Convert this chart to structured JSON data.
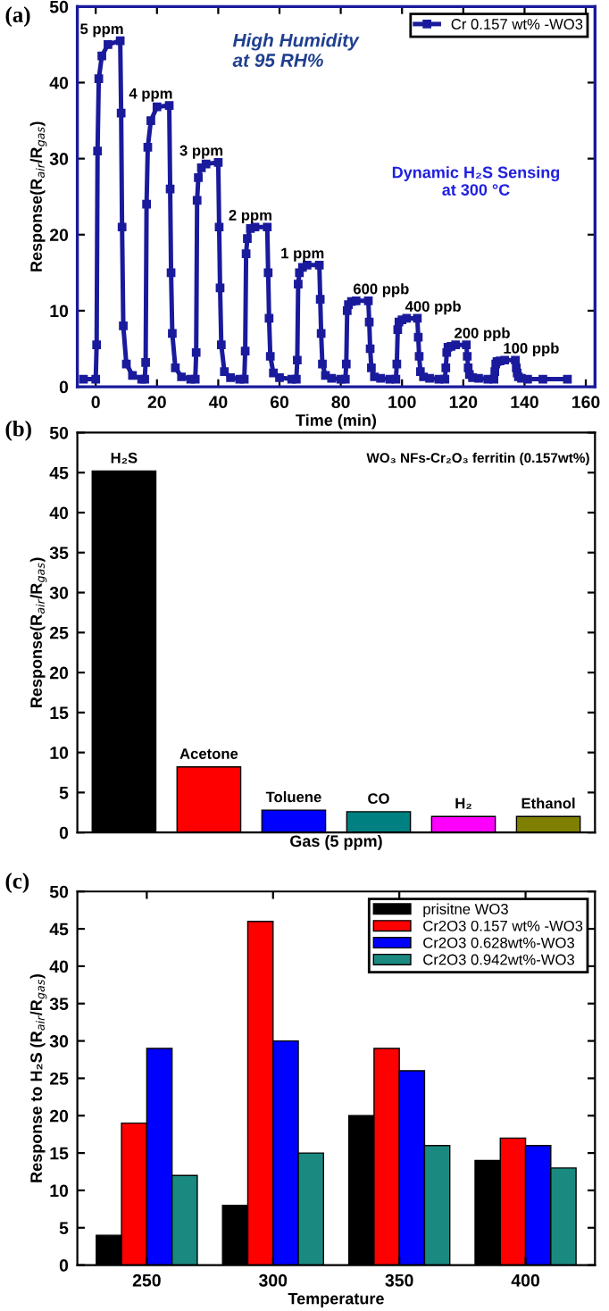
{
  "chart_data": [
    {
      "type": "line",
      "xlabel": "Time (min)",
      "ylabel": "Response(R$_{air}$/R$_{gas}$)",
      "xlim": [
        -6,
        163
      ],
      "ylim": [
        0,
        50
      ],
      "xticks": [
        0,
        20,
        40,
        60,
        80,
        100,
        120,
        140,
        160
      ],
      "yticks": [
        0,
        10,
        20,
        30,
        40,
        50
      ],
      "legend": "top right",
      "marker": "square",
      "line_style": "solid",
      "grid": false,
      "series": [
        {
          "name": "Cr 0.157 wt% -WO3",
          "color": "#1a1a9c",
          "x": [
            -4,
            0,
            0.3,
            0.6,
            1,
            2,
            4,
            8,
            8.3,
            8.6,
            9,
            10,
            12,
            15,
            16,
            16.3,
            16.6,
            17,
            18,
            20,
            24,
            24.3,
            24.6,
            25,
            26,
            28,
            31,
            32.5,
            32.8,
            33.1,
            33.5,
            34.5,
            36,
            40,
            40.3,
            40.6,
            41,
            42,
            44,
            47,
            48.5,
            48.8,
            49.1,
            49.5,
            50.5,
            52,
            56,
            56.3,
            56.6,
            57,
            58,
            60,
            64,
            65.5,
            65.8,
            66.1,
            66.5,
            67.5,
            69,
            73,
            73.3,
            73.6,
            74,
            75,
            77,
            80,
            81.5,
            81.8,
            82.1,
            82.5,
            83.5,
            85,
            89,
            89.3,
            89.6,
            90,
            91,
            93,
            96,
            98,
            98.3,
            98.6,
            99,
            100,
            101.5,
            105,
            105.3,
            105.6,
            106,
            107,
            109,
            112,
            114,
            114.3,
            114.6,
            115,
            116,
            117.5,
            121,
            121.3,
            121.6,
            122,
            123,
            125,
            128,
            130,
            130.3,
            130.6,
            131,
            132,
            133.5,
            137,
            137.3,
            137.6,
            138,
            139,
            141,
            146,
            154
          ],
          "values": [
            1,
            1,
            5.5,
            31,
            40.5,
            43.5,
            45,
            45.5,
            36,
            21,
            8,
            3,
            1.5,
            1,
            1,
            3.2,
            24,
            31.5,
            35,
            36.8,
            37,
            26,
            15,
            7,
            2.5,
            1.3,
            1,
            1,
            4.5,
            24.5,
            27.5,
            28.8,
            29.3,
            29.5,
            21,
            13,
            5.5,
            2,
            1.2,
            1,
            1,
            4.7,
            17.5,
            19.5,
            20.8,
            21,
            21,
            15,
            9,
            4,
            1.8,
            1.2,
            1,
            1,
            3.5,
            13.5,
            15,
            15.7,
            16,
            16,
            11.5,
            7,
            3,
            1.5,
            1.1,
            1,
            1,
            3,
            10,
            10.8,
            11.2,
            11.3,
            11.3,
            8.5,
            5,
            2.5,
            1.3,
            1.1,
            1,
            1,
            3,
            7.5,
            8.5,
            8.8,
            9,
            9,
            6.5,
            4,
            2,
            1.3,
            1.1,
            1,
            1,
            2.5,
            4.5,
            5.2,
            5.3,
            5.5,
            5.5,
            4,
            2.5,
            1.6,
            1.2,
            1.1,
            1,
            1,
            2,
            3,
            3.3,
            3.4,
            3.5,
            3.5,
            2.5,
            1.8,
            1.3,
            1.1,
            1,
            1,
            1
          ]
        }
      ],
      "annotations": [
        "(a)",
        "High Humidity\nat 95 RH%",
        "Dynamic H₂S Sensing\nat 300 °C",
        {
          "text": "5 ppm",
          "x": 2,
          "y": 45.5
        },
        {
          "text": "4 ppm",
          "x": 18,
          "y": 37
        },
        {
          "text": "3 ppm",
          "x": 34.5,
          "y": 29.5
        },
        {
          "text": "2 ppm",
          "x": 50.5,
          "y": 21
        },
        {
          "text": "1 ppm",
          "x": 67.5,
          "y": 16
        },
        {
          "text": "600 ppb",
          "x": 84,
          "y": 11.3
        },
        {
          "text": "400 ppb",
          "x": 101,
          "y": 9
        },
        {
          "text": "200 ppb",
          "x": 117,
          "y": 5.5
        },
        {
          "text": "100 ppb",
          "x": 133,
          "y": 3.5
        }
      ]
    },
    {
      "type": "bar",
      "xlabel": "Gas (5 ppm)",
      "ylabel": "Response(R$_{air}$/R$_{gas}$)",
      "ylim": [
        0,
        50
      ],
      "yticks": [
        0,
        5,
        10,
        15,
        20,
        25,
        30,
        35,
        40,
        45,
        50
      ],
      "tick_labels": "y",
      "grid": false,
      "categories": [
        "H₂S",
        "Acetone",
        "Toluene",
        "CO",
        "H₂",
        "Ethanol"
      ],
      "values": [
        45.2,
        8.2,
        2.8,
        2.6,
        2.0,
        2.0
      ],
      "colors": [
        "#000000",
        "#ff0000",
        "#0000ff",
        "#008080",
        "#ff00ff",
        "#808000"
      ],
      "annotations": [
        "(b)",
        "WO₃ NFs-Cr₂O₃ ferritin (0.157wt%)"
      ]
    },
    {
      "type": "bar",
      "xlabel": "Temperature",
      "ylabel": "Response to H₂S (R$_{air}$/R$_{gas}$)",
      "ylim": [
        0,
        50
      ],
      "yticks": [
        0,
        5,
        10,
        15,
        20,
        25,
        30,
        35,
        40,
        45,
        50
      ],
      "legend": "top right",
      "grid": false,
      "categories": [
        "250",
        "300",
        "350",
        "400"
      ],
      "series": [
        {
          "name": "prisitne WO3",
          "color": "#000000",
          "values": [
            4,
            8,
            20,
            14
          ]
        },
        {
          "name": "Cr2O3 0.157 wt% -WO3",
          "color": "#ff0000",
          "values": [
            19,
            46,
            29,
            17
          ]
        },
        {
          "name": "Cr2O3 0.628wt%-WO3",
          "color": "#0000ff",
          "values": [
            29,
            30,
            26,
            16
          ]
        },
        {
          "name": "Cr2O3 0.942wt%-WO3",
          "color": "#1a8a80",
          "values": [
            12,
            15,
            16,
            13
          ]
        }
      ],
      "annotations": [
        "(c)"
      ]
    }
  ]
}
